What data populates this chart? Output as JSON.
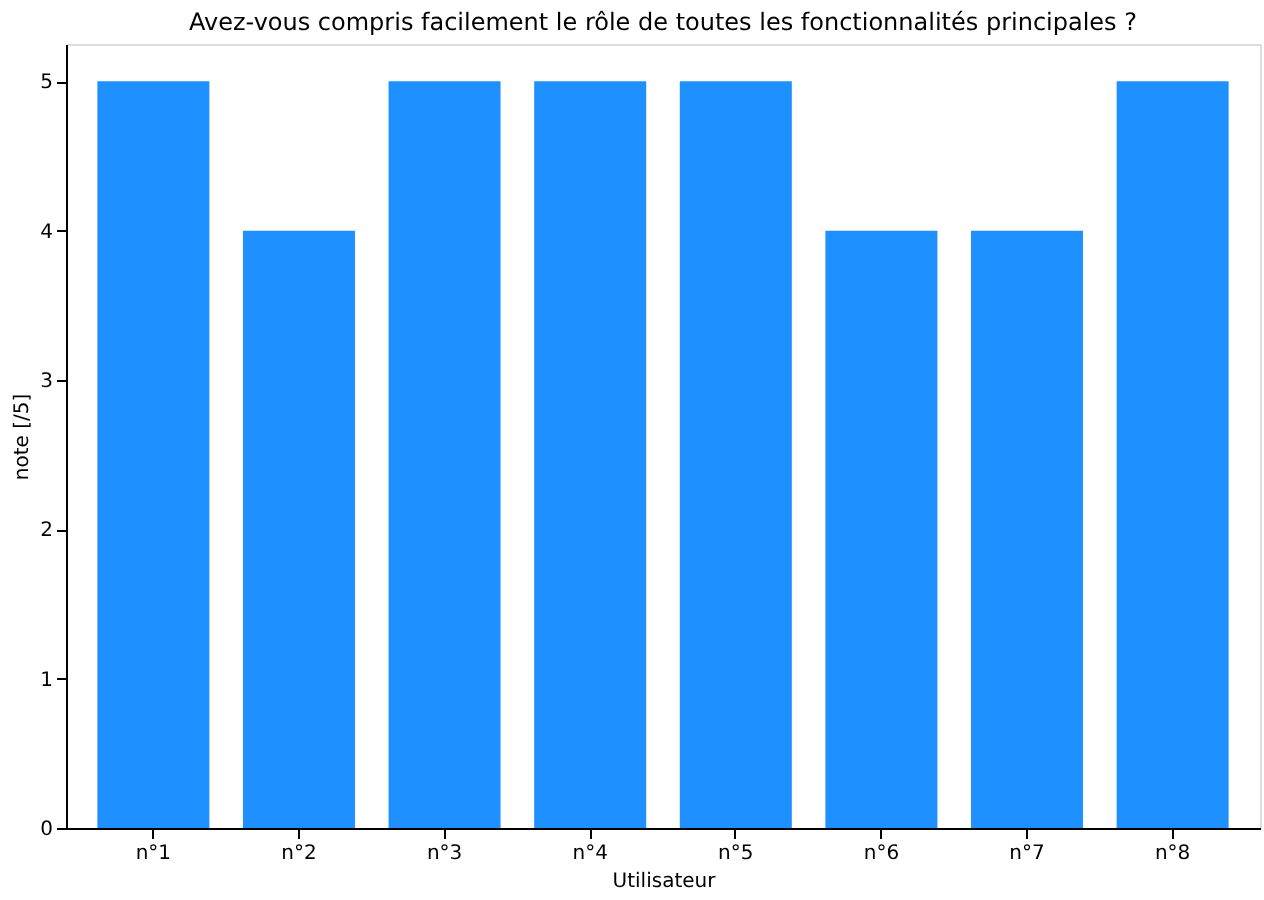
{
  "chart_data": {
    "type": "bar",
    "title": "Avez-vous compris facilement le rôle de toutes les fonctionnalités principales ?",
    "xlabel": "Utilisateur",
    "ylabel": "note [/5]",
    "categories": [
      "n°1",
      "n°2",
      "n°3",
      "n°4",
      "n°5",
      "n°6",
      "n°7",
      "n°8"
    ],
    "values": [
      5,
      4,
      5,
      5,
      5,
      4,
      4,
      5
    ],
    "color": "#1e90ff",
    "ylim": [
      0,
      5.25
    ],
    "yticks": [
      0,
      1,
      2,
      3,
      4,
      5
    ],
    "grid": false
  }
}
